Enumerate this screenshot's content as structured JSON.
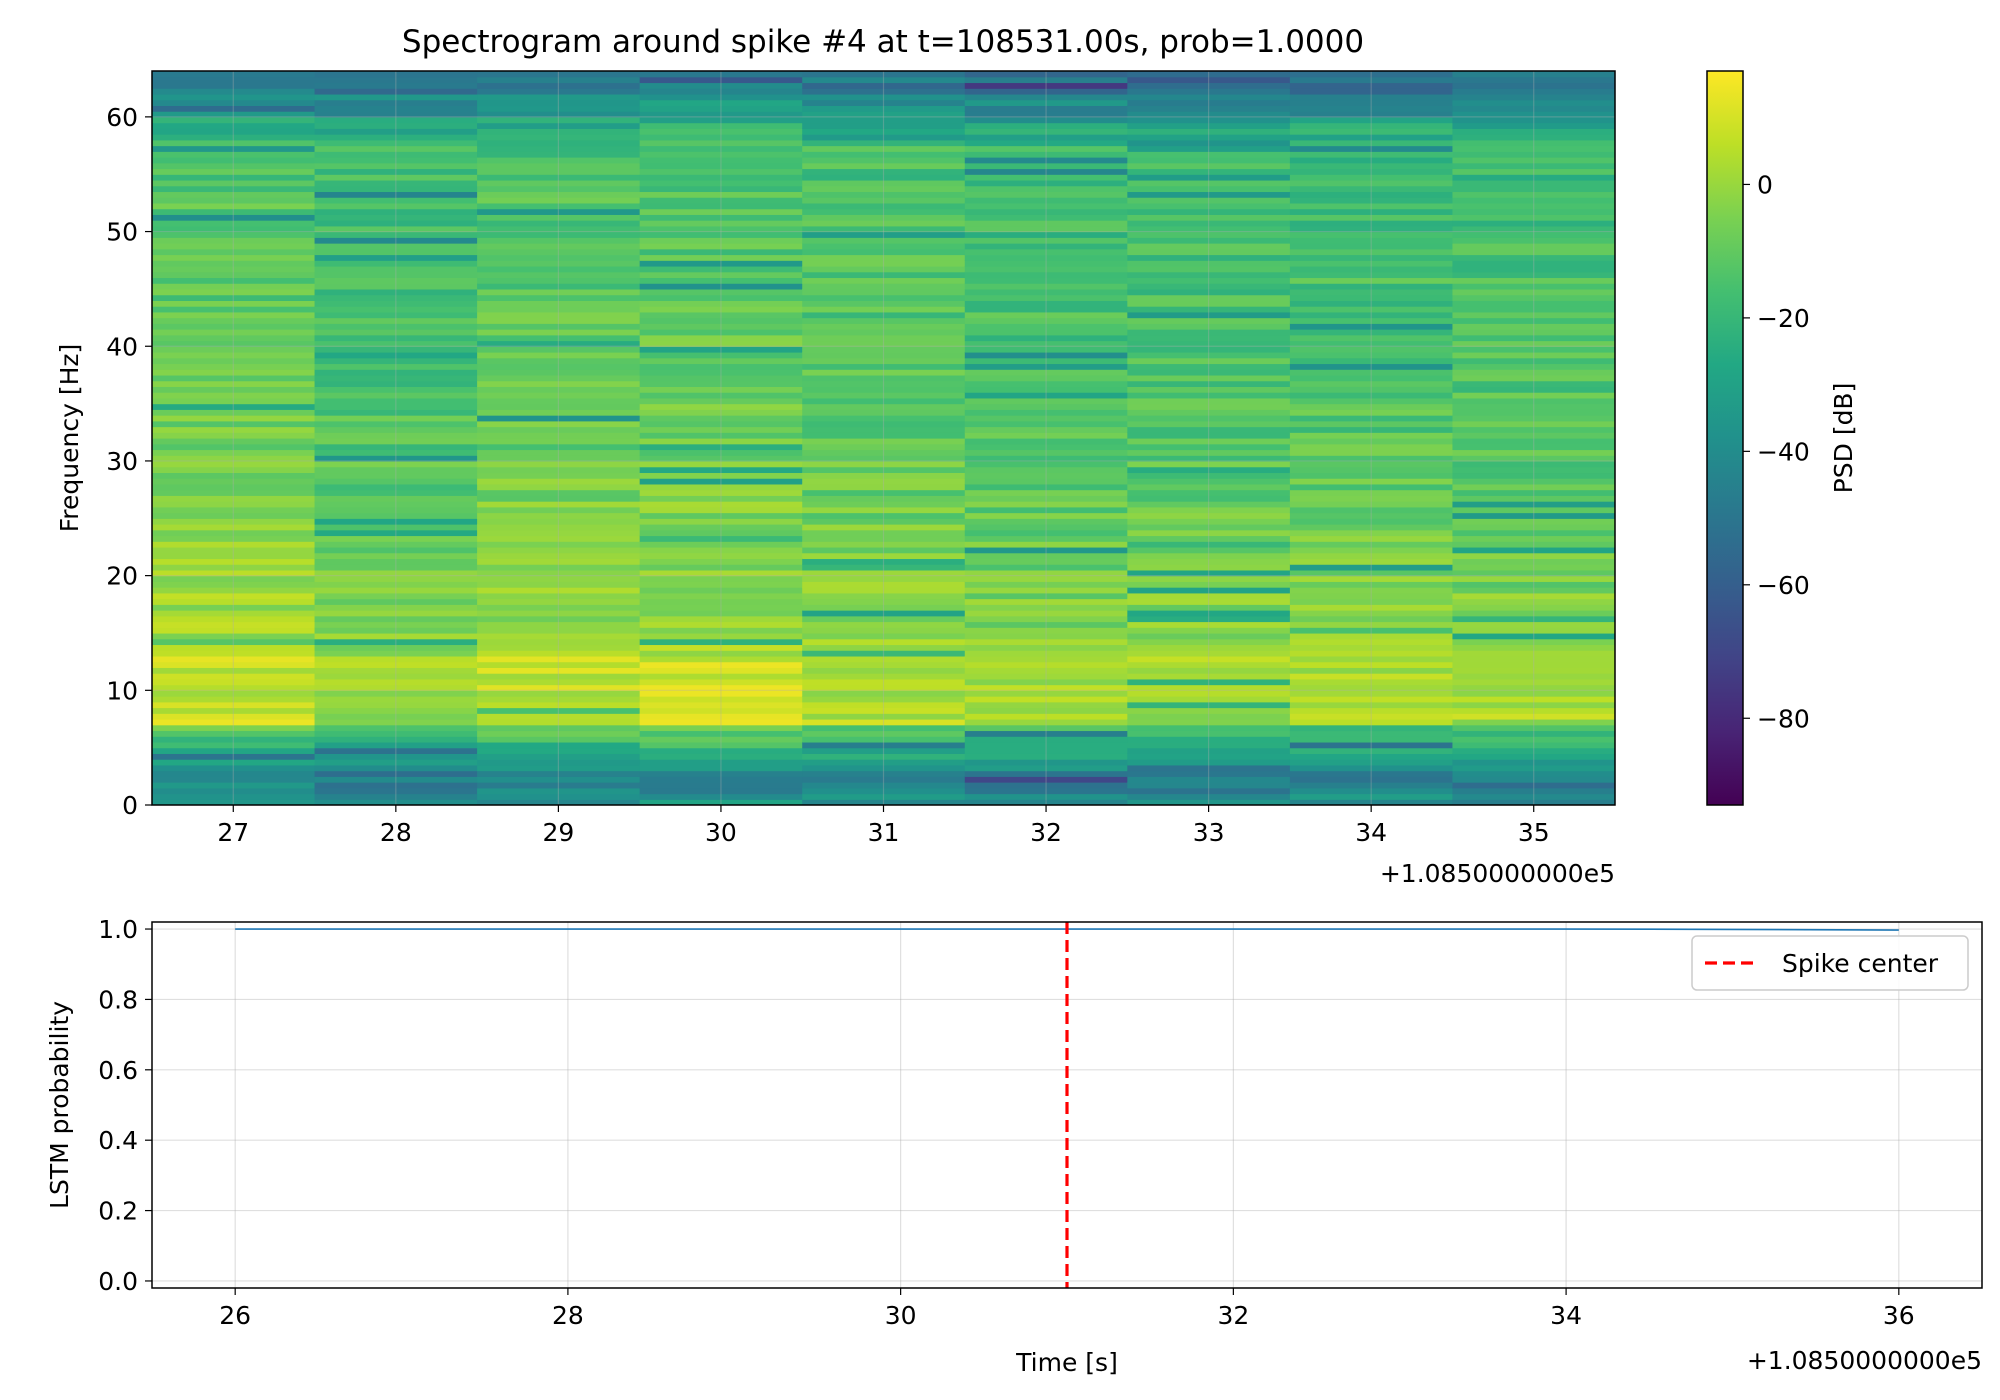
{
  "chart_data": [
    {
      "id": "spectrogram",
      "type": "heatmap",
      "title": "Spectrogram around spike #4 at t=108531.00s, prob=1.0000",
      "xlabel": "",
      "ylabel": "Frequency [Hz]",
      "xlim": [
        26.5,
        35.5
      ],
      "ylim": [
        0,
        64
      ],
      "x_offset_label": "+1.0850000000e5",
      "x_ticks": [
        27,
        28,
        29,
        30,
        31,
        32,
        33,
        34,
        35
      ],
      "x_tick_labels": [
        "27",
        "28",
        "29",
        "30",
        "31",
        "32",
        "33",
        "34",
        "35"
      ],
      "y_ticks": [
        0,
        10,
        20,
        30,
        40,
        50,
        60
      ],
      "y_tick_labels": [
        "0",
        "10",
        "20",
        "30",
        "40",
        "50",
        "60"
      ],
      "grid": true,
      "time_bins": [
        27,
        28,
        29,
        30,
        31,
        32,
        33,
        34,
        35
      ],
      "frequency_bin_width_hz": 0.5,
      "colormap": "viridis",
      "colorbar": {
        "label": "PSD [dB]",
        "range": [
          -93,
          17
        ],
        "ticks": [
          0,
          -20,
          -40,
          -60,
          -80
        ],
        "tick_labels": [
          "0",
          "−20",
          "−40",
          "−60",
          "−80"
        ]
      }
    },
    {
      "id": "probability",
      "type": "line",
      "title": "",
      "xlabel": "Time [s]",
      "ylabel": "LSTM probability",
      "xlim": [
        25.5,
        36.5
      ],
      "ylim": [
        -0.02,
        1.02
      ],
      "x_offset_label": "+1.0850000000e5",
      "x_ticks": [
        26,
        28,
        30,
        32,
        34,
        36
      ],
      "x_tick_labels": [
        "26",
        "28",
        "30",
        "32",
        "34",
        "36"
      ],
      "y_ticks": [
        0.0,
        0.2,
        0.4,
        0.6,
        0.8,
        1.0
      ],
      "y_tick_labels": [
        "0.0",
        "0.2",
        "0.4",
        "0.6",
        "0.8",
        "1.0"
      ],
      "grid": true,
      "series": [
        {
          "name": "LSTM probability",
          "color": "#1f77b4",
          "x": [
            26,
            28,
            30,
            31,
            32,
            34,
            35,
            36
          ],
          "y": [
            1.0,
            1.0,
            1.0,
            1.0,
            1.0,
            1.0,
            0.999,
            0.997
          ]
        }
      ],
      "vlines": [
        {
          "name": "Spike center",
          "x": 31.0,
          "color": "#ff0000",
          "style": "dashed"
        }
      ],
      "legend": {
        "position": "top-right",
        "entries": [
          "Spike center"
        ]
      }
    }
  ]
}
